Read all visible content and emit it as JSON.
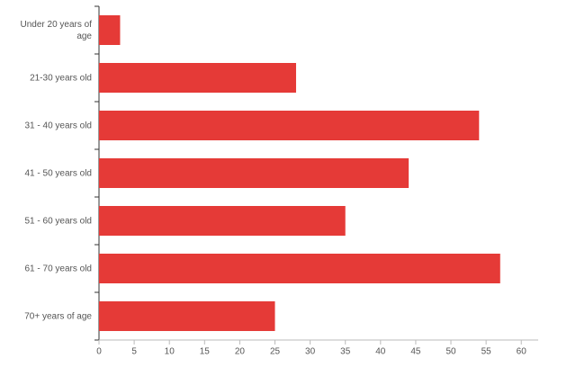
{
  "chart_data": {
    "type": "hbar",
    "categories": [
      "Under 20 years of age",
      "21-30 years old",
      "31 - 40 years old",
      "41 - 50 years old",
      "51 - 60 years old",
      "61 - 70 years old",
      "70+ years of age"
    ],
    "values": [
      3,
      28,
      54,
      44,
      35,
      57,
      25
    ],
    "color": "#e53a37",
    "xlim": [
      0,
      62.4
    ],
    "xticks": [
      0,
      5,
      10,
      15,
      20,
      25,
      30,
      35,
      40,
      45,
      50,
      55,
      60
    ]
  }
}
